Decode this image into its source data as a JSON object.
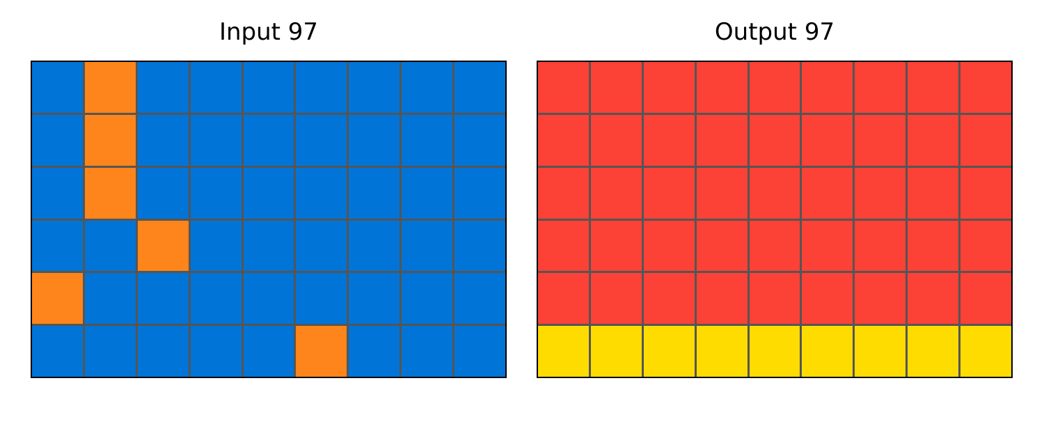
{
  "palette": {
    "1": "#0074D7",
    "2": "#FC4136",
    "4": "#FFDC00",
    "7": "#FE851B"
  },
  "panels": [
    {
      "title": "Input 97",
      "grid": [
        [
          1,
          7,
          1,
          1,
          1,
          1,
          1,
          1,
          1
        ],
        [
          1,
          7,
          1,
          1,
          1,
          1,
          1,
          1,
          1
        ],
        [
          1,
          7,
          1,
          1,
          1,
          1,
          1,
          1,
          1
        ],
        [
          1,
          1,
          7,
          1,
          1,
          1,
          1,
          1,
          1
        ],
        [
          7,
          1,
          1,
          1,
          1,
          1,
          1,
          1,
          1
        ],
        [
          1,
          1,
          1,
          1,
          1,
          7,
          1,
          1,
          1
        ]
      ]
    },
    {
      "title": "Output 97",
      "grid": [
        [
          2,
          2,
          2,
          2,
          2,
          2,
          2,
          2,
          2
        ],
        [
          2,
          2,
          2,
          2,
          2,
          2,
          2,
          2,
          2
        ],
        [
          2,
          2,
          2,
          2,
          2,
          2,
          2,
          2,
          2
        ],
        [
          2,
          2,
          2,
          2,
          2,
          2,
          2,
          2,
          2
        ],
        [
          2,
          2,
          2,
          2,
          2,
          2,
          2,
          2,
          2
        ],
        [
          4,
          4,
          4,
          4,
          4,
          4,
          4,
          4,
          4
        ]
      ]
    }
  ]
}
